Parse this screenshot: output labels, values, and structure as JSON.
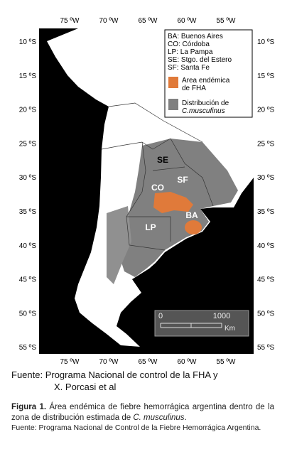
{
  "map": {
    "lon_labels": [
      "75 ºW",
      "70 ºW",
      "65 ºW",
      "60 ºW",
      "55 ºW"
    ],
    "lat_labels": [
      "10 ºS",
      "15 ºS",
      "20 ºS",
      "25 ºS",
      "30 ºS",
      "35 ºS",
      "40 ºS",
      "45 ºS",
      "50 ºS",
      "55 ºS"
    ],
    "legend": {
      "abbreviations": [
        "BA: Buenos Aires",
        "CO: Córdoba",
        "LP: La Pampa",
        "SE: Stgo. del Estero",
        "SF: Santa Fe"
      ],
      "endemic": [
        "Area endémica",
        "de FHA"
      ],
      "distribution": [
        "Distribución de",
        "C.muscufinus"
      ]
    },
    "region_labels": [
      "SE",
      "SF",
      "CO",
      "BA",
      "LP"
    ],
    "scale": {
      "start": "0",
      "end": "1000",
      "unit": "Km"
    }
  },
  "source": [
    "Fuente: Programa Nacional de control de la FHA y",
    "X. Porcasi et al"
  ],
  "caption": {
    "label": "Figura 1.",
    "text": "Área endémica de fiebre hemorrágica argentina dentro de la zona de distribución estimada de",
    "species": "C. musculinus",
    "end": ".",
    "source": "Fuente: Programa Nacional de Control de la Fiebre Hemorrágica Argentina."
  }
}
